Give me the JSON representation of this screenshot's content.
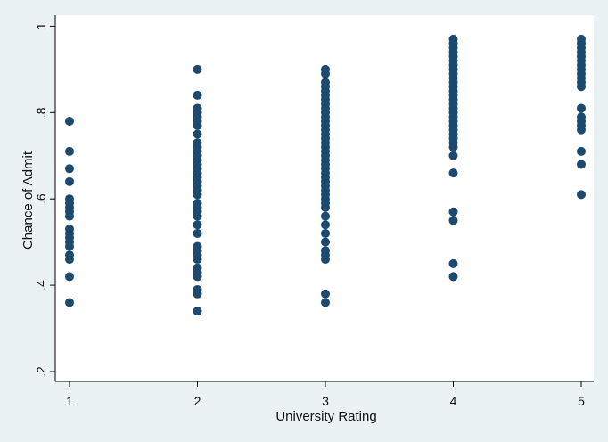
{
  "chart_data": {
    "type": "scatter",
    "xlabel": "University Rating",
    "ylabel": "Chance of Admit",
    "xlim": [
      0.98,
      5.02
    ],
    "ylim": [
      0.2,
      1.0
    ],
    "x_ticks": [
      1,
      2,
      3,
      4,
      5
    ],
    "x_tick_labels": [
      "1",
      "2",
      "3",
      "4",
      "5"
    ],
    "y_ticks": [
      0.2,
      0.4,
      0.6,
      0.8,
      1.0
    ],
    "y_tick_labels": [
      ".2",
      ".4",
      ".6",
      ".8",
      "1"
    ],
    "grid": false,
    "legend": "none",
    "marker_color": "#1c4a6e",
    "series": [
      {
        "points": [
          [
            1,
            0.36
          ],
          [
            1,
            0.42
          ],
          [
            1,
            0.46
          ],
          [
            1,
            0.47
          ],
          [
            1,
            0.49
          ],
          [
            1,
            0.5
          ],
          [
            1,
            0.51
          ],
          [
            1,
            0.52
          ],
          [
            1,
            0.53
          ],
          [
            1,
            0.56
          ],
          [
            1,
            0.57
          ],
          [
            1,
            0.58
          ],
          [
            1,
            0.59
          ],
          [
            1,
            0.6
          ],
          [
            1,
            0.64
          ],
          [
            1,
            0.67
          ],
          [
            1,
            0.71
          ],
          [
            1,
            0.78
          ],
          [
            2,
            0.34
          ],
          [
            2,
            0.38
          ],
          [
            2,
            0.39
          ],
          [
            2,
            0.42
          ],
          [
            2,
            0.43
          ],
          [
            2,
            0.44
          ],
          [
            2,
            0.46
          ],
          [
            2,
            0.47
          ],
          [
            2,
            0.48
          ],
          [
            2,
            0.49
          ],
          [
            2,
            0.52
          ],
          [
            2,
            0.54
          ],
          [
            2,
            0.56
          ],
          [
            2,
            0.57
          ],
          [
            2,
            0.58
          ],
          [
            2,
            0.59
          ],
          [
            2,
            0.61
          ],
          [
            2,
            0.62
          ],
          [
            2,
            0.63
          ],
          [
            2,
            0.64
          ],
          [
            2,
            0.65
          ],
          [
            2,
            0.66
          ],
          [
            2,
            0.67
          ],
          [
            2,
            0.68
          ],
          [
            2,
            0.69
          ],
          [
            2,
            0.7
          ],
          [
            2,
            0.71
          ],
          [
            2,
            0.72
          ],
          [
            2,
            0.73
          ],
          [
            2,
            0.75
          ],
          [
            2,
            0.77
          ],
          [
            2,
            0.78
          ],
          [
            2,
            0.79
          ],
          [
            2,
            0.8
          ],
          [
            2,
            0.81
          ],
          [
            2,
            0.84
          ],
          [
            2,
            0.9
          ],
          [
            3,
            0.36
          ],
          [
            3,
            0.38
          ],
          [
            3,
            0.46
          ],
          [
            3,
            0.47
          ],
          [
            3,
            0.48
          ],
          [
            3,
            0.5
          ],
          [
            3,
            0.52
          ],
          [
            3,
            0.54
          ],
          [
            3,
            0.56
          ],
          [
            3,
            0.58
          ],
          [
            3,
            0.59
          ],
          [
            3,
            0.6
          ],
          [
            3,
            0.61
          ],
          [
            3,
            0.62
          ],
          [
            3,
            0.63
          ],
          [
            3,
            0.64
          ],
          [
            3,
            0.65
          ],
          [
            3,
            0.66
          ],
          [
            3,
            0.67
          ],
          [
            3,
            0.68
          ],
          [
            3,
            0.69
          ],
          [
            3,
            0.7
          ],
          [
            3,
            0.71
          ],
          [
            3,
            0.72
          ],
          [
            3,
            0.73
          ],
          [
            3,
            0.74
          ],
          [
            3,
            0.75
          ],
          [
            3,
            0.76
          ],
          [
            3,
            0.77
          ],
          [
            3,
            0.78
          ],
          [
            3,
            0.79
          ],
          [
            3,
            0.8
          ],
          [
            3,
            0.81
          ],
          [
            3,
            0.82
          ],
          [
            3,
            0.83
          ],
          [
            3,
            0.84
          ],
          [
            3,
            0.85
          ],
          [
            3,
            0.86
          ],
          [
            3,
            0.87
          ],
          [
            3,
            0.89
          ],
          [
            3,
            0.9
          ],
          [
            4,
            0.42
          ],
          [
            4,
            0.45
          ],
          [
            4,
            0.55
          ],
          [
            4,
            0.57
          ],
          [
            4,
            0.66
          ],
          [
            4,
            0.7
          ],
          [
            4,
            0.72
          ],
          [
            4,
            0.73
          ],
          [
            4,
            0.74
          ],
          [
            4,
            0.75
          ],
          [
            4,
            0.76
          ],
          [
            4,
            0.77
          ],
          [
            4,
            0.78
          ],
          [
            4,
            0.79
          ],
          [
            4,
            0.8
          ],
          [
            4,
            0.81
          ],
          [
            4,
            0.82
          ],
          [
            4,
            0.83
          ],
          [
            4,
            0.84
          ],
          [
            4,
            0.85
          ],
          [
            4,
            0.86
          ],
          [
            4,
            0.87
          ],
          [
            4,
            0.88
          ],
          [
            4,
            0.89
          ],
          [
            4,
            0.9
          ],
          [
            4,
            0.91
          ],
          [
            4,
            0.92
          ],
          [
            4,
            0.93
          ],
          [
            4,
            0.94
          ],
          [
            4,
            0.95
          ],
          [
            4,
            0.96
          ],
          [
            4,
            0.97
          ],
          [
            5,
            0.61
          ],
          [
            5,
            0.68
          ],
          [
            5,
            0.71
          ],
          [
            5,
            0.76
          ],
          [
            5,
            0.77
          ],
          [
            5,
            0.78
          ],
          [
            5,
            0.79
          ],
          [
            5,
            0.81
          ],
          [
            5,
            0.86
          ],
          [
            5,
            0.87
          ],
          [
            5,
            0.88
          ],
          [
            5,
            0.89
          ],
          [
            5,
            0.9
          ],
          [
            5,
            0.91
          ],
          [
            5,
            0.92
          ],
          [
            5,
            0.93
          ],
          [
            5,
            0.94
          ],
          [
            5,
            0.95
          ],
          [
            5,
            0.96
          ],
          [
            5,
            0.97
          ]
        ]
      }
    ]
  }
}
